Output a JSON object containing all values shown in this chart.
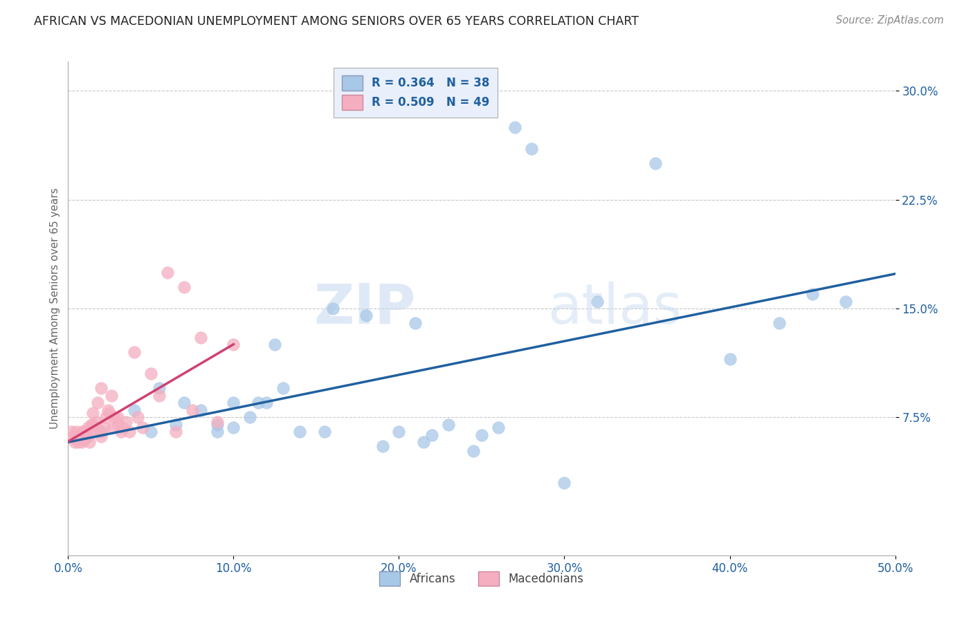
{
  "title": "AFRICAN VS MACEDONIAN UNEMPLOYMENT AMONG SENIORS OVER 65 YEARS CORRELATION CHART",
  "source": "Source: ZipAtlas.com",
  "ylabel": "Unemployment Among Seniors over 65 years",
  "xlim": [
    0.0,
    0.5
  ],
  "ylim": [
    -0.02,
    0.32
  ],
  "xticks": [
    0.0,
    0.1,
    0.2,
    0.3,
    0.4,
    0.5
  ],
  "xtick_labels": [
    "0.0%",
    "10.0%",
    "20.0%",
    "30.0%",
    "40.0%",
    "50.0%"
  ],
  "yticks": [
    0.075,
    0.15,
    0.225,
    0.3
  ],
  "ytick_labels": [
    "7.5%",
    "15.0%",
    "22.5%",
    "30.0%"
  ],
  "african_color": "#a8c8e8",
  "macedonian_color": "#f5aec0",
  "african_line_color": "#2060a0",
  "macedonian_line_color": "#d04070",
  "background_color": "#ffffff",
  "grid_color": "#c8c8c8",
  "R_african": 0.364,
  "N_african": 38,
  "R_macedonian": 0.509,
  "N_macedonian": 49,
  "african_scatter_x": [
    0.02,
    0.04,
    0.05,
    0.055,
    0.065,
    0.07,
    0.08,
    0.09,
    0.09,
    0.1,
    0.1,
    0.11,
    0.115,
    0.12,
    0.125,
    0.13,
    0.14,
    0.155,
    0.16,
    0.18,
    0.19,
    0.2,
    0.21,
    0.215,
    0.22,
    0.23,
    0.245,
    0.25,
    0.26,
    0.27,
    0.28,
    0.3,
    0.32,
    0.355,
    0.4,
    0.43,
    0.45,
    0.47
  ],
  "african_scatter_y": [
    0.065,
    0.08,
    0.065,
    0.095,
    0.07,
    0.085,
    0.08,
    0.065,
    0.07,
    0.068,
    0.085,
    0.075,
    0.085,
    0.085,
    0.125,
    0.095,
    0.065,
    0.065,
    0.15,
    0.145,
    0.055,
    0.065,
    0.14,
    0.058,
    0.063,
    0.07,
    0.052,
    0.063,
    0.068,
    0.275,
    0.26,
    0.03,
    0.155,
    0.25,
    0.115,
    0.14,
    0.16,
    0.155
  ],
  "macedonian_scatter_x": [
    0.002,
    0.003,
    0.004,
    0.005,
    0.005,
    0.006,
    0.007,
    0.008,
    0.008,
    0.009,
    0.01,
    0.01,
    0.012,
    0.012,
    0.013,
    0.014,
    0.015,
    0.015,
    0.016,
    0.017,
    0.018,
    0.019,
    0.02,
    0.02,
    0.022,
    0.023,
    0.024,
    0.025,
    0.026,
    0.027,
    0.028,
    0.03,
    0.03,
    0.032,
    0.033,
    0.035,
    0.037,
    0.04,
    0.042,
    0.045,
    0.05,
    0.055,
    0.06,
    0.065,
    0.07,
    0.075,
    0.08,
    0.09,
    0.1
  ],
  "macedonian_scatter_y": [
    0.065,
    0.062,
    0.058,
    0.065,
    0.06,
    0.058,
    0.062,
    0.065,
    0.058,
    0.06,
    0.065,
    0.06,
    0.062,
    0.068,
    0.058,
    0.07,
    0.07,
    0.078,
    0.065,
    0.072,
    0.085,
    0.065,
    0.062,
    0.095,
    0.068,
    0.075,
    0.08,
    0.078,
    0.09,
    0.068,
    0.075,
    0.07,
    0.075,
    0.065,
    0.068,
    0.072,
    0.065,
    0.12,
    0.075,
    0.068,
    0.105,
    0.09,
    0.175,
    0.065,
    0.165,
    0.08,
    0.13,
    0.072,
    0.125
  ],
  "watermark_zip": "ZIP",
  "watermark_atlas": "atlas",
  "legend_box_color": "#e8f0fb",
  "legend_text_color": "#2060a0",
  "tick_color": "#2060a0"
}
